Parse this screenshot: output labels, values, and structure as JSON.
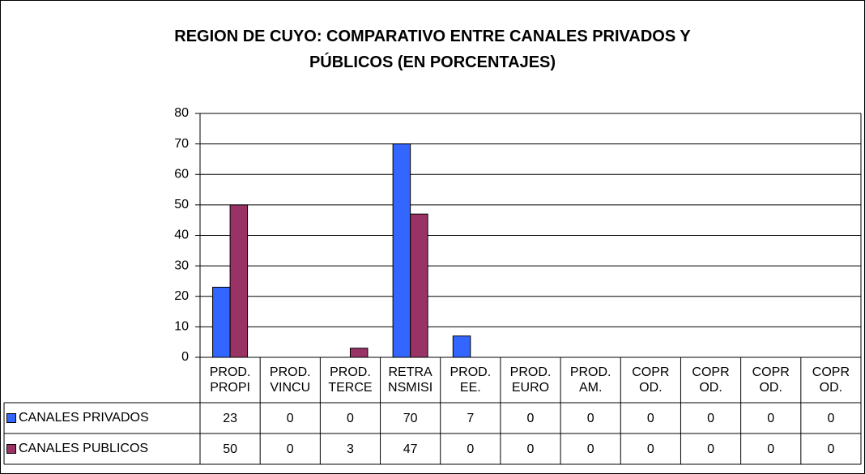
{
  "chart_data": {
    "type": "bar",
    "title": "REGION DE CUYO: COMPARATIVO ENTRE CANALES PRIVADOS Y\nPÚBLICOS (EN PORCENTAJES)",
    "categories": [
      "PROD.\nPROPI",
      "PROD.\nVINCU",
      "PROD.\nTERCE",
      "RETRA\nNSMISI",
      "PROD.\nEE.",
      "PROD.\nEURO",
      "PROD.\nAM.",
      "COPR\nOD.",
      "COPR\nOD.",
      "COPR\nOD.",
      "COPR\nOD."
    ],
    "series": [
      {
        "name": "CANALES PRIVADOS",
        "color": "#3366ff",
        "values": [
          23,
          0,
          0,
          70,
          7,
          0,
          0,
          0,
          0,
          0,
          0
        ]
      },
      {
        "name": "CANALES PUBLICOS",
        "color": "#993366",
        "values": [
          50,
          0,
          3,
          47,
          0,
          0,
          0,
          0,
          0,
          0,
          0
        ]
      }
    ],
    "ylim": [
      0,
      80
    ],
    "yticks": [
      0,
      10,
      20,
      30,
      40,
      50,
      60,
      70,
      80
    ],
    "grid": true
  }
}
